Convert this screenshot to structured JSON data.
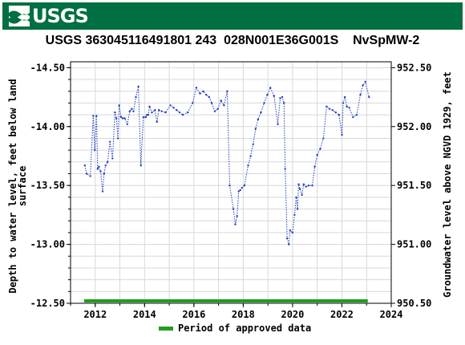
{
  "header": {
    "logo_text": "USGS",
    "logo_icon": "usgs-wave-icon",
    "brand_color": "#006f41"
  },
  "chart_data": {
    "type": "line",
    "title": "USGS 363045116491801 243  028N001E36G001S    NvSpMW-2",
    "ylabel": "Depth to water level, feet below land surface",
    "ylabel_lines": [
      "Depth to water level, feet below land",
      "surface"
    ],
    "y2label": "Groundwater level above NGVD 1929, feet",
    "xlim": [
      2011,
      2024
    ],
    "ylim": [
      -12.5,
      -14.55
    ],
    "y_inverted": true,
    "y2lim": [
      950.5,
      952.55
    ],
    "x_ticks": [
      2012,
      2014,
      2016,
      2018,
      2020,
      2022,
      2024
    ],
    "y_ticks": [
      -14.5,
      -14.0,
      -13.5,
      -13.0,
      -12.5
    ],
    "y_tick_labels": [
      "-14.50",
      "-14.00",
      "-13.50",
      "-13.00",
      "-12.50"
    ],
    "y2_ticks": [
      952.5,
      952.0,
      951.5,
      951.0,
      950.5
    ],
    "y2_tick_labels": [
      "952.50",
      "952.00",
      "951.50",
      "951.00",
      "950.50"
    ],
    "grid": true,
    "series_color": "#1f3fbf",
    "approved_color": "#1f9e1f",
    "approved_period": [
      2011.55,
      2023.05
    ],
    "legend": {
      "label": "Period of approved data",
      "placement": "bottom-center"
    },
    "series": [
      {
        "x": [
          2011.58,
          2011.65,
          2011.8,
          2011.92,
          2011.98,
          2012.05,
          2012.1,
          2012.15,
          2012.22,
          2012.3,
          2012.36,
          2012.42,
          2012.5,
          2012.6,
          2012.7,
          2012.8,
          2012.86,
          2012.92,
          2012.97,
          2013.05,
          2013.12,
          2013.2,
          2013.3,
          2013.4,
          2013.48,
          2013.55,
          2013.65,
          2013.75,
          2013.85,
          2013.95,
          2014.05,
          2014.1,
          2014.15,
          2014.2,
          2014.3,
          2014.42,
          2014.5,
          2014.58,
          2014.7,
          2014.85,
          2015.05,
          2015.18,
          2015.3,
          2015.42,
          2015.55,
          2015.75,
          2015.95,
          2016.1,
          2016.25,
          2016.38,
          2016.5,
          2016.62,
          2016.72,
          2016.85,
          2016.97,
          2017.1,
          2017.22,
          2017.35,
          2017.45,
          2017.6,
          2017.68,
          2017.75,
          2017.82,
          2017.88,
          2017.95,
          2018.05,
          2018.2,
          2018.3,
          2018.4,
          2018.5,
          2018.6,
          2018.72,
          2018.85,
          2018.98,
          2019.1,
          2019.25,
          2019.4,
          2019.5,
          2019.58,
          2019.65,
          2019.7,
          2019.78,
          2019.85,
          2019.9,
          2020.0,
          2020.08,
          2020.15,
          2020.2,
          2020.25,
          2020.3,
          2020.38,
          2020.45,
          2020.55,
          2020.65,
          2020.8,
          2020.9,
          2021.0,
          2021.12,
          2021.25,
          2021.38,
          2021.5,
          2021.62,
          2021.75,
          2021.88,
          2022.0,
          2022.05,
          2022.12,
          2022.2,
          2022.3,
          2022.45,
          2022.6,
          2022.75,
          2022.85,
          2022.95,
          2023.1
        ],
        "y": [
          -13.67,
          -13.6,
          -13.58,
          -14.09,
          -13.8,
          -14.09,
          -13.64,
          -13.66,
          -13.62,
          -13.45,
          -13.6,
          -13.67,
          -13.7,
          -13.87,
          -13.73,
          -14.12,
          -14.07,
          -13.9,
          -14.18,
          -14.08,
          -14.07,
          -14.07,
          -14.02,
          -14.13,
          -14.15,
          -14.13,
          -14.25,
          -14.34,
          -13.67,
          -14.08,
          -14.08,
          -14.1,
          -14.1,
          -14.17,
          -14.12,
          -14.14,
          -14.04,
          -14.14,
          -14.13,
          -14.12,
          -14.18,
          -14.16,
          -14.14,
          -14.12,
          -14.1,
          -14.12,
          -14.2,
          -14.33,
          -14.28,
          -14.3,
          -14.27,
          -14.25,
          -14.2,
          -14.13,
          -14.15,
          -14.22,
          -14.18,
          -14.3,
          -13.5,
          -13.3,
          -13.17,
          -13.24,
          -13.45,
          -13.46,
          -13.48,
          -13.5,
          -13.67,
          -13.75,
          -13.85,
          -13.98,
          -14.06,
          -14.12,
          -14.2,
          -14.27,
          -14.33,
          -14.26,
          -14.02,
          -14.24,
          -14.25,
          -14.2,
          -13.64,
          -13.05,
          -13.0,
          -13.12,
          -13.1,
          -13.25,
          -13.4,
          -13.3,
          -13.51,
          -13.47,
          -13.42,
          -13.51,
          -13.49,
          -13.5,
          -13.5,
          -13.66,
          -13.76,
          -13.81,
          -13.9,
          -14.17,
          -14.15,
          -14.14,
          -14.12,
          -14.1,
          -13.93,
          -14.2,
          -14.25,
          -14.17,
          -14.16,
          -14.08,
          -14.1,
          -14.27,
          -14.35,
          -14.38,
          -14.25
        ]
      }
    ]
  }
}
